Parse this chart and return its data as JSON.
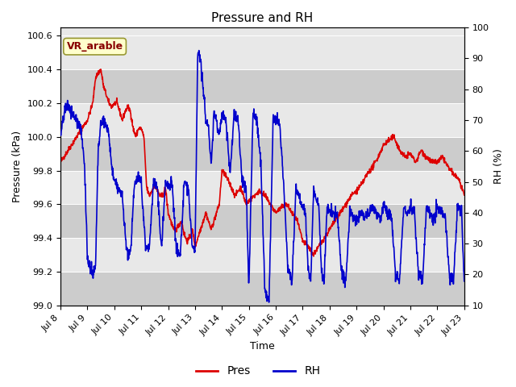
{
  "title": "Pressure and RH",
  "xlabel": "Time",
  "ylabel_left": "Pressure (kPa)",
  "ylabel_right": "RH (%)",
  "annotation": "VR_arable",
  "ylim_left": [
    99.0,
    100.65
  ],
  "ylim_right": [
    10,
    100
  ],
  "yticks_left": [
    99.0,
    99.2,
    99.4,
    99.6,
    99.8,
    100.0,
    100.2,
    100.4,
    100.6
  ],
  "yticks_right": [
    10,
    20,
    30,
    40,
    50,
    60,
    70,
    80,
    90,
    100
  ],
  "fig_bg_color": "#ffffff",
  "plot_bg_color": "#dcdcdc",
  "band_color_dark": "#cccccc",
  "band_color_light": "#e8e8e8",
  "pres_color": "#dd0000",
  "rh_color": "#0000cc",
  "title_fontsize": 11,
  "label_fontsize": 9,
  "tick_fontsize": 8,
  "legend_fontsize": 10,
  "grid_color": "#ffffff",
  "x_start": 8.0,
  "x_end": 23.0,
  "x_tick_positions": [
    8,
    9,
    10,
    11,
    12,
    13,
    14,
    15,
    16,
    17,
    18,
    19,
    20,
    21,
    22,
    23
  ],
  "x_tick_labels": [
    "Jul 8",
    "Jul 9",
    "Jul 10",
    "Jul 11",
    "Jul 12",
    "Jul 13",
    "Jul 14",
    "Jul 15",
    "Jul 16",
    "Jul 17",
    "Jul 18",
    "Jul 19",
    "Jul 20",
    "Jul 21",
    "Jul 22",
    "Jul 23"
  ],
  "legend_labels": [
    "Pres",
    "RH"
  ],
  "annot_facecolor": "#ffffcc",
  "annot_edgecolor": "#999933",
  "annot_textcolor": "#880000"
}
